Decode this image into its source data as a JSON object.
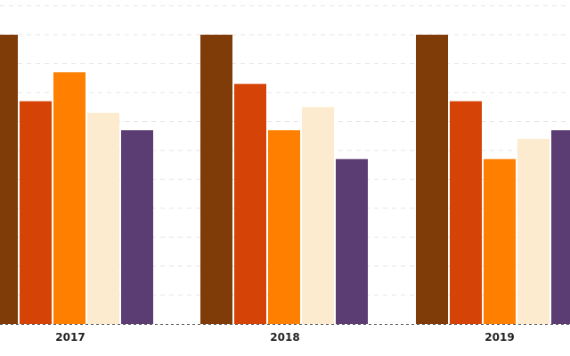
{
  "chart_data": {
    "type": "bar",
    "categories": [
      "2017",
      "2018",
      "2019"
    ],
    "series": [
      {
        "color": "#7f3b08",
        "values": [
          100,
          100,
          100
        ]
      },
      {
        "color": "#d54307",
        "values": [
          77,
          83,
          77
        ]
      },
      {
        "color": "#ff7f00",
        "values": [
          87,
          67,
          57
        ]
      },
      {
        "color": "#fdebd0",
        "values": [
          73,
          75,
          64
        ]
      },
      {
        "color": "#5b3c73",
        "values": [
          67,
          57,
          67
        ]
      }
    ],
    "ylim": [
      0,
      112
    ],
    "grid": true,
    "legend": "none",
    "xlabel": "",
    "ylabel": ""
  }
}
